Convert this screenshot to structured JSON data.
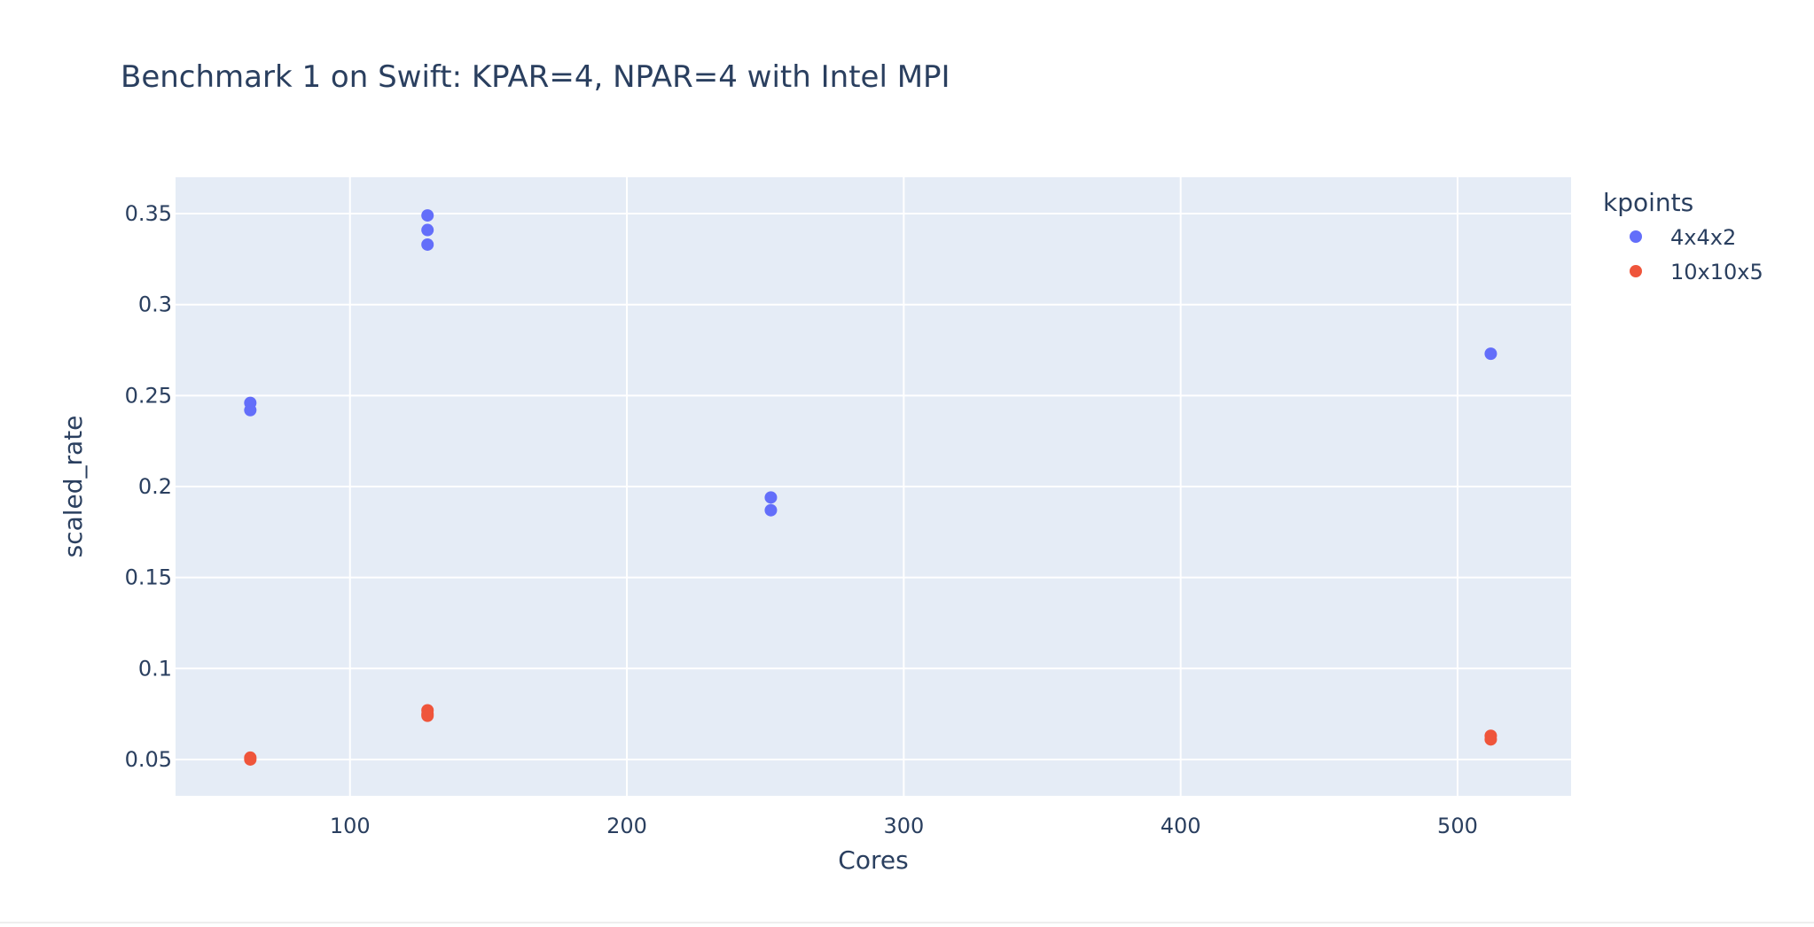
{
  "chart_data": {
    "type": "scatter",
    "title": "Benchmark 1 on Swift: KPAR=4, NPAR=4 with Intel MPI",
    "xlabel": "Cores",
    "ylabel": "scaled_rate",
    "xlim": [
      37,
      541
    ],
    "ylim": [
      0.03,
      0.37
    ],
    "x_ticks": [
      100,
      200,
      300,
      400,
      500
    ],
    "y_ticks": [
      0.05,
      0.1,
      0.15,
      0.2,
      0.25,
      0.3,
      0.35
    ],
    "x_tick_labels": [
      "100",
      "200",
      "300",
      "400",
      "500"
    ],
    "y_tick_labels": [
      "0.05",
      "0.1",
      "0.15",
      "0.2",
      "0.25",
      "0.3",
      "0.35"
    ],
    "grid": true,
    "legend": {
      "title": "kpoints",
      "position": "right"
    },
    "series": [
      {
        "name": "4x4x2",
        "color": "#636efa",
        "points": [
          {
            "x": 64,
            "y": 0.246
          },
          {
            "x": 64,
            "y": 0.242
          },
          {
            "x": 128,
            "y": 0.349
          },
          {
            "x": 128,
            "y": 0.341
          },
          {
            "x": 128,
            "y": 0.333
          },
          {
            "x": 252,
            "y": 0.194
          },
          {
            "x": 252,
            "y": 0.187
          },
          {
            "x": 512,
            "y": 0.273
          }
        ]
      },
      {
        "name": "10x10x5",
        "color": "#EF553B",
        "points": [
          {
            "x": 64,
            "y": 0.051
          },
          {
            "x": 64,
            "y": 0.05
          },
          {
            "x": 128,
            "y": 0.077
          },
          {
            "x": 128,
            "y": 0.075
          },
          {
            "x": 128,
            "y": 0.074
          },
          {
            "x": 512,
            "y": 0.063
          },
          {
            "x": 512,
            "y": 0.061
          }
        ]
      }
    ],
    "colors": {
      "plot_background": "#E5ECF6",
      "grid": "#ffffff",
      "text": "#2a3f5f"
    }
  }
}
